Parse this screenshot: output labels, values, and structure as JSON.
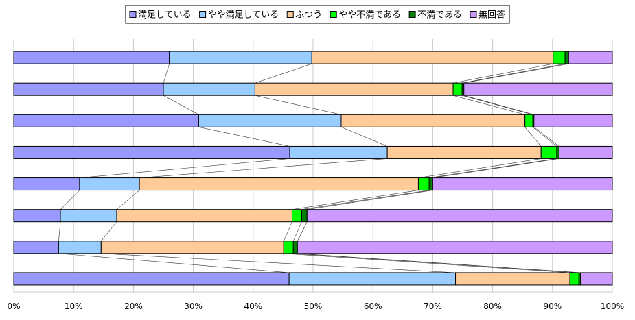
{
  "chart_data": {
    "type": "bar",
    "orientation": "horizontal",
    "stacked": true,
    "percent": true,
    "xlim": [
      0,
      100
    ],
    "x_ticks": [
      "0%",
      "10%",
      "20%",
      "30%",
      "40%",
      "50%",
      "60%",
      "70%",
      "80%",
      "90%",
      "100%"
    ],
    "grid": true,
    "legend": "top-center",
    "series_lines": true,
    "series": [
      {
        "name": "満足している",
        "color": "#9999ff",
        "values": [
          26.0,
          25.0,
          30.9,
          46.1,
          11.0,
          7.8,
          7.5,
          46.0
        ]
      },
      {
        "name": "やや満足している",
        "color": "#99ccff",
        "values": [
          23.8,
          15.3,
          23.8,
          16.3,
          10.0,
          9.4,
          7.1,
          27.8
        ]
      },
      {
        "name": "ふつう",
        "color": "#ffcc99",
        "values": [
          40.3,
          33.1,
          30.7,
          25.7,
          46.6,
          29.3,
          30.5,
          19.1
        ]
      },
      {
        "name": "やや不満である",
        "color": "#00ff00",
        "values": [
          2.0,
          1.5,
          1.3,
          2.6,
          1.8,
          1.6,
          1.6,
          1.5
        ]
      },
      {
        "name": "不満である",
        "color": "#008000",
        "values": [
          0.6,
          0.3,
          0.2,
          0.4,
          0.6,
          0.9,
          0.7,
          0.3
        ]
      },
      {
        "name": "無回答",
        "color": "#cc99ff",
        "values": [
          7.3,
          24.8,
          13.1,
          8.9,
          30.0,
          51.0,
          52.6,
          5.3
        ]
      }
    ]
  }
}
